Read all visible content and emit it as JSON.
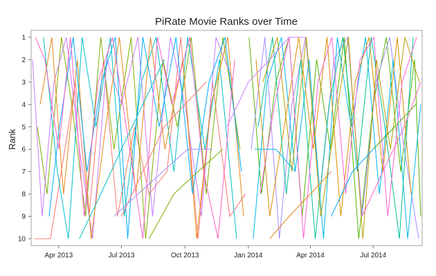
{
  "chart_data": {
    "type": "line",
    "title": "PiRate Movie Ranks over Time",
    "xlabel": "",
    "ylabel": "Rank",
    "y_ticks": [
      "1",
      "2",
      "3",
      "4",
      "5",
      "6",
      "7",
      "8",
      "9",
      "10"
    ],
    "y_reversed": true,
    "ylim": [
      10,
      1
    ],
    "xlim": [
      "2013-02-20",
      "2014-09-10"
    ],
    "x_ticks": [
      {
        "date": "2013-04-01",
        "label": "Apr 2013"
      },
      {
        "date": "2013-07-01",
        "label": "Jul 2013"
      },
      {
        "date": "2013-10-01",
        "label": "Oct 2013"
      },
      {
        "date": "2014-01-01",
        "label": "Jan 2014"
      },
      {
        "date": "2014-04-01",
        "label": "Apr 2014"
      },
      {
        "date": "2014-07-01",
        "label": "Jul 2014"
      }
    ],
    "grid": false,
    "legend": "none",
    "colors": [
      "#F8766D",
      "#7CAE00",
      "#00BFC4",
      "#C77CFF",
      "#E7861B",
      "#00A9FF",
      "#FF61C3",
      "#53B400",
      "#A58AFF",
      "#00B6EB",
      "#DE8C00",
      "#00C094",
      "#FB61D7",
      "#B79F00"
    ],
    "series": [
      {
        "x": [
          "2013-02-25",
          "2013-03-05",
          "2013-03-20",
          "2013-04-10",
          "2013-04-25",
          "2013-05-15",
          "2013-06-05",
          "2013-06-25",
          "2013-07-20",
          "2013-08-10",
          "2013-09-05",
          "2013-09-25",
          "2013-10-20",
          "2013-11-10",
          "2013-12-05",
          "2013-12-28"
        ],
        "y": [
          10,
          10,
          10,
          6,
          3,
          9,
          2,
          9,
          5,
          8,
          7,
          1,
          10,
          3,
          9,
          8
        ]
      },
      {
        "x": [
          "2013-03-01",
          "2013-03-15",
          "2013-04-05",
          "2013-04-20",
          "2013-05-10",
          "2013-06-01",
          "2013-06-20",
          "2013-07-15",
          "2013-08-05",
          "2013-08-30",
          "2013-09-20",
          "2013-10-10",
          "2013-11-01",
          "2013-11-25",
          "2013-12-20"
        ],
        "y": [
          5,
          8,
          1,
          4,
          9,
          1,
          6,
          1,
          10,
          2,
          5,
          1,
          8,
          1,
          6
        ]
      },
      {
        "x": [
          "2013-03-10",
          "2013-03-30",
          "2013-04-15",
          "2013-05-05",
          "2013-05-25",
          "2013-06-15",
          "2013-07-05",
          "2013-07-30",
          "2013-08-20",
          "2013-09-15",
          "2013-10-05",
          "2013-10-30",
          "2013-11-20",
          "2013-12-15"
        ],
        "y": [
          1,
          7,
          10,
          1,
          5,
          1,
          9,
          3,
          1,
          7,
          1,
          6,
          2,
          10
        ]
      },
      {
        "x": [
          "2013-02-22",
          "2013-03-08",
          "2013-03-25",
          "2013-04-12",
          "2013-05-01",
          "2013-05-20",
          "2013-06-10",
          "2013-07-01",
          "2013-07-25",
          "2013-08-15",
          "2013-09-10",
          "2013-10-01",
          "2013-10-25",
          "2013-11-15",
          "2013-12-10"
        ],
        "y": [
          2,
          9,
          3,
          1,
          6,
          10,
          2,
          4,
          1,
          9,
          1,
          4,
          9,
          1,
          3
        ]
      },
      {
        "x": [
          "2013-03-05",
          "2013-03-22",
          "2013-04-08",
          "2013-04-28",
          "2013-05-18",
          "2013-06-08",
          "2013-06-28",
          "2013-07-22",
          "2013-08-12",
          "2013-09-02",
          "2013-09-28",
          "2013-10-18",
          "2013-11-08",
          "2013-12-02",
          "2013-12-25"
        ],
        "y": [
          4,
          1,
          8,
          2,
          10,
          5,
          1,
          8,
          1,
          6,
          2,
          10,
          4,
          1,
          9
        ]
      },
      {
        "x": [
          "2013-03-18",
          "2013-04-02",
          "2013-04-22",
          "2013-05-12",
          "2013-06-02",
          "2013-06-22",
          "2013-07-10",
          "2013-08-01",
          "2013-08-25",
          "2013-09-18",
          "2013-10-12",
          "2013-11-05",
          "2013-11-28",
          "2013-12-22"
        ],
        "y": [
          9,
          5,
          1,
          7,
          3,
          1,
          10,
          1,
          5,
          1,
          8,
          3,
          1,
          7
        ]
      },
      {
        "x": [
          "2013-02-26",
          "2013-03-12",
          "2013-04-01",
          "2013-04-18",
          "2013-05-08",
          "2013-05-28",
          "2013-06-18",
          "2013-07-08",
          "2013-08-01",
          "2013-08-22",
          "2013-09-12",
          "2013-10-08",
          "2013-10-28",
          "2013-11-18",
          "2013-12-12"
        ],
        "y": [
          1,
          2,
          6,
          1,
          9,
          3,
          1,
          5,
          10,
          1,
          4,
          1,
          7,
          10,
          2
        ]
      },
      {
        "x": [
          "2014-01-02",
          "2014-01-20",
          "2014-02-10",
          "2014-03-01",
          "2014-03-20",
          "2014-04-10",
          "2014-04-30",
          "2014-05-20",
          "2014-06-10",
          "2014-07-01",
          "2014-07-20",
          "2014-08-10",
          "2014-08-30",
          "2014-09-08"
        ],
        "y": [
          1,
          8,
          3,
          1,
          9,
          2,
          6,
          1,
          10,
          4,
          1,
          7,
          2,
          9
        ]
      },
      {
        "x": [
          "2014-01-05",
          "2014-01-25",
          "2014-02-15",
          "2014-03-05",
          "2014-03-25",
          "2014-04-15",
          "2014-05-05",
          "2014-05-25",
          "2014-06-15",
          "2014-07-05",
          "2014-07-25",
          "2014-08-15",
          "2014-09-05"
        ],
        "y": [
          6,
          1,
          10,
          4,
          1,
          8,
          2,
          1,
          9,
          3,
          1,
          6,
          10
        ]
      },
      {
        "x": [
          "2014-01-08",
          "2014-01-28",
          "2014-02-18",
          "2014-03-10",
          "2014-03-30",
          "2014-04-20",
          "2014-05-10",
          "2014-05-30",
          "2014-06-20",
          "2014-07-10",
          "2014-07-30",
          "2014-08-20",
          "2014-09-08"
        ],
        "y": [
          10,
          3,
          1,
          7,
          2,
          10,
          1,
          5,
          1,
          8,
          2,
          10,
          4
        ]
      },
      {
        "x": [
          "2014-01-12",
          "2014-02-01",
          "2014-02-22",
          "2014-03-15",
          "2014-04-05",
          "2014-04-25",
          "2014-05-15",
          "2014-06-05",
          "2014-06-25",
          "2014-07-15",
          "2014-08-05",
          "2014-08-25"
        ],
        "y": [
          2,
          9,
          5,
          1,
          6,
          1,
          9,
          3,
          1,
          7,
          1,
          8
        ]
      },
      {
        "x": [
          "2014-01-15",
          "2014-02-05",
          "2014-02-25",
          "2014-03-18",
          "2014-04-08",
          "2014-04-28",
          "2014-05-18",
          "2014-06-08",
          "2014-06-28",
          "2014-07-18",
          "2014-08-08",
          "2014-08-28"
        ],
        "y": [
          5,
          1,
          8,
          2,
          10,
          4,
          1,
          7,
          1,
          5,
          10,
          1
        ]
      },
      {
        "x": [
          "2014-01-18",
          "2014-02-08",
          "2014-03-01",
          "2014-03-22",
          "2014-04-12",
          "2014-05-02",
          "2014-05-22",
          "2014-06-12",
          "2014-07-02",
          "2014-07-22",
          "2014-08-12",
          "2014-09-02"
        ],
        "y": [
          8,
          4,
          1,
          10,
          3,
          1,
          8,
          2,
          1,
          9,
          3,
          1
        ]
      },
      {
        "x": [
          "2014-01-22",
          "2014-02-12",
          "2014-03-05",
          "2014-03-26",
          "2014-04-16",
          "2014-05-06",
          "2014-05-26",
          "2014-06-16",
          "2014-07-06",
          "2014-07-26",
          "2014-08-16",
          "2014-09-06"
        ],
        "y": [
          3,
          1,
          7,
          1,
          9,
          5,
          1,
          10,
          2,
          6,
          1,
          3
        ]
      },
      {
        "x": [
          "2013-07-01",
          "2013-08-01",
          "2013-09-01",
          "2013-10-01",
          "2013-11-01"
        ],
        "y": [
          9,
          7,
          5,
          4,
          3
        ]
      },
      {
        "x": [
          "2013-08-10",
          "2013-09-15",
          "2013-10-20",
          "2013-11-25"
        ],
        "y": [
          10,
          8,
          7,
          6
        ]
      },
      {
        "x": [
          "2013-05-01",
          "2013-06-01",
          "2013-07-01",
          "2013-08-01",
          "2013-09-01"
        ],
        "y": [
          10,
          8,
          6,
          4,
          2
        ]
      },
      {
        "x": [
          "2013-12-01",
          "2014-01-01",
          "2014-02-01",
          "2014-03-01",
          "2014-03-25"
        ],
        "y": [
          5,
          3,
          2,
          1,
          1
        ]
      },
      {
        "x": [
          "2014-02-01",
          "2014-03-01",
          "2014-04-01",
          "2014-05-01"
        ],
        "y": [
          10,
          9,
          8,
          7
        ]
      },
      {
        "x": [
          "2014-05-01",
          "2014-06-01",
          "2014-07-01",
          "2014-08-01"
        ],
        "y": [
          9,
          7,
          6,
          5
        ]
      },
      {
        "x": [
          "2014-06-15",
          "2014-07-15",
          "2014-08-15",
          "2014-09-08"
        ],
        "y": [
          9,
          7,
          5,
          3
        ]
      },
      {
        "x": [
          "2014-07-01",
          "2014-08-01",
          "2014-09-01"
        ],
        "y": [
          6,
          5,
          4
        ]
      },
      {
        "x": [
          "2013-06-20",
          "2013-07-25",
          "2013-08-30",
          "2013-10-05",
          "2013-11-10"
        ],
        "y": [
          9,
          8,
          7,
          6,
          6
        ]
      },
      {
        "x": [
          "2014-01-10",
          "2014-02-10",
          "2014-03-10"
        ],
        "y": [
          6,
          6,
          7
        ]
      }
    ]
  }
}
